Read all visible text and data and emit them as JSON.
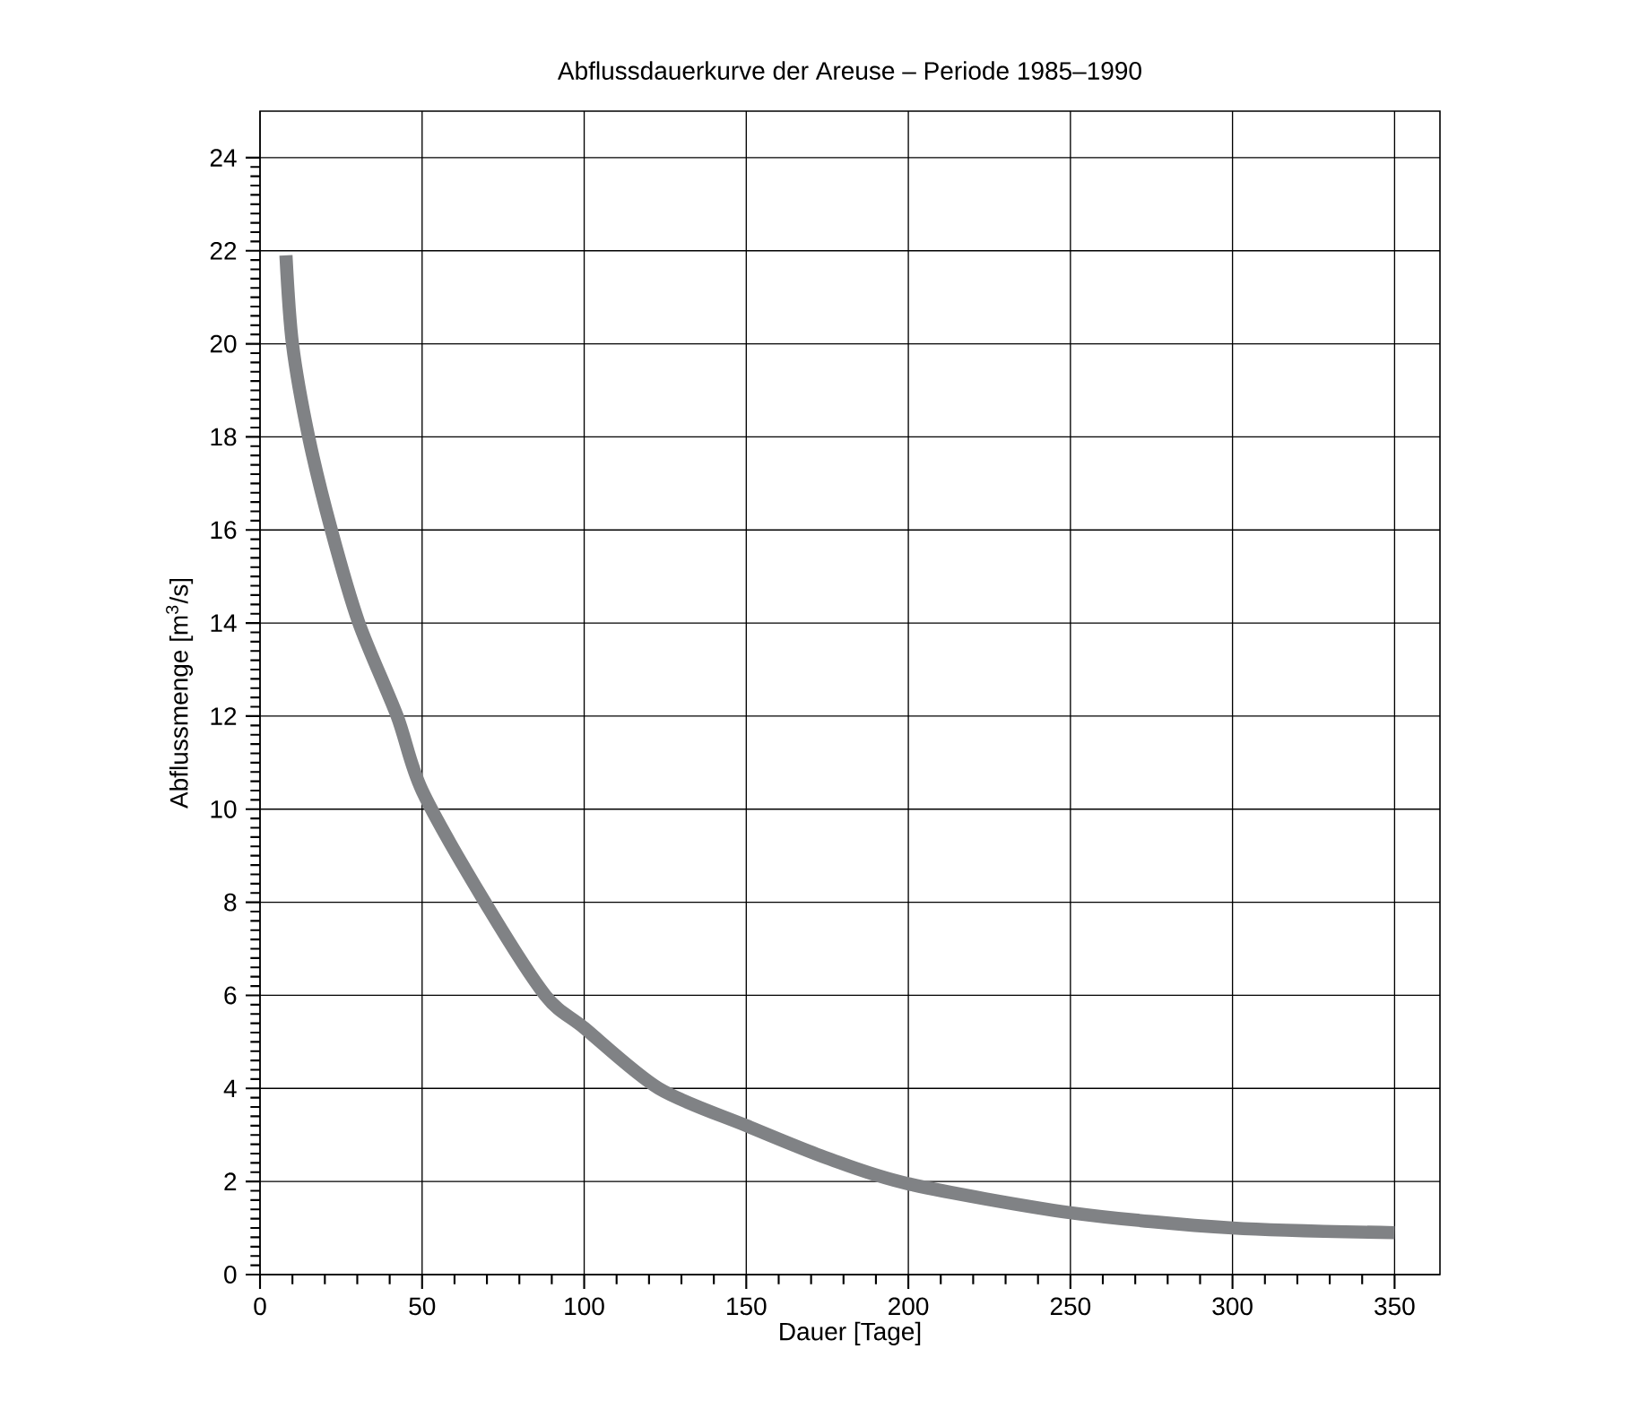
{
  "chart_data": {
    "type": "line",
    "title": "Abflussdauerkurve der Areuse – Periode 1985–1990",
    "xlabel": "Dauer [Tage]",
    "ylabel": "Abflussmenge [m$^{3}$/s]",
    "series": [
      {
        "color": "#808285",
        "x": [
          8,
          10,
          15,
          22,
          30.5,
          42.3,
          50,
          69.4,
          88,
          100,
          123,
          150,
          175,
          200,
          250,
          300,
          350
        ],
        "values": [
          21.9,
          20,
          18,
          16,
          14,
          12,
          10.4,
          8,
          6,
          5.3,
          4,
          3.2,
          2.5,
          1.95,
          1.33,
          1.0,
          0.9
        ]
      }
    ],
    "xlim": [
      0,
      364
    ],
    "ylim": [
      0,
      25
    ],
    "xticks": [
      0,
      50,
      100,
      150,
      200,
      250,
      300,
      350
    ],
    "yticks": [
      0,
      2,
      4,
      6,
      8,
      10,
      12,
      14,
      16,
      18,
      20,
      22,
      24
    ],
    "grid": true,
    "marker": "none",
    "line_style": "solid"
  }
}
